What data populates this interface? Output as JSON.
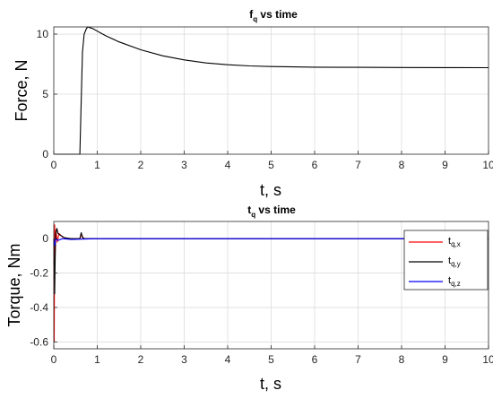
{
  "chart_data": [
    {
      "type": "line",
      "title": "f",
      "title_subscript": "q",
      "title_suffix": " vs time",
      "xlabel": "t, s",
      "ylabel": "Force, N",
      "xlim": [
        0,
        10
      ],
      "ylim": [
        0,
        10.6
      ],
      "xticks": [
        0,
        1,
        2,
        3,
        4,
        5,
        6,
        7,
        8,
        9,
        10
      ],
      "yticks": [
        0,
        5,
        10
      ],
      "grid": true,
      "series": [
        {
          "color": "#000000",
          "x": [
            0,
            0.6,
            0.62,
            0.66,
            0.7,
            0.75,
            0.78,
            0.82,
            0.9,
            1.0,
            1.2,
            1.5,
            2.0,
            2.5,
            3.0,
            3.5,
            4.0,
            4.5,
            5.0,
            5.5,
            6.0,
            7.0,
            8.0,
            9.0,
            10.0
          ],
          "y": [
            0,
            0,
            3.0,
            8.5,
            10.0,
            10.45,
            10.6,
            10.55,
            10.45,
            10.25,
            9.85,
            9.35,
            8.7,
            8.2,
            7.85,
            7.6,
            7.45,
            7.35,
            7.3,
            7.27,
            7.25,
            7.23,
            7.22,
            7.21,
            7.2
          ]
        }
      ]
    },
    {
      "type": "line",
      "title": "t",
      "title_subscript": "q",
      "title_suffix": " vs time",
      "xlabel": "t, s",
      "ylabel": "Torque, Nm",
      "xlim": [
        0,
        10
      ],
      "ylim": [
        -0.64,
        0.1
      ],
      "xticks": [
        0,
        1,
        2,
        3,
        4,
        5,
        6,
        7,
        8,
        9,
        10
      ],
      "yticks": [
        -0.6,
        -0.4,
        -0.2,
        0
      ],
      "grid": true,
      "legend_position": "top-right",
      "series": [
        {
          "name": "t",
          "name_subscript": "q,x",
          "color": "#ff0000",
          "x": [
            0,
            0.01,
            0.02,
            0.03,
            0.05,
            0.08,
            0.12,
            0.2,
            0.3,
            0.6,
            0.63,
            0.66,
            0.7,
            1.0,
            10.0
          ],
          "y": [
            0,
            -0.6,
            0.08,
            -0.1,
            0.05,
            -0.02,
            0.03,
            0.01,
            0,
            0,
            0.03,
            0.005,
            0,
            0,
            0
          ]
        },
        {
          "name": "t",
          "name_subscript": "q,y",
          "color": "#000000",
          "x": [
            0,
            0.02,
            0.04,
            0.07,
            0.1,
            0.15,
            0.25,
            0.4,
            0.6,
            0.63,
            0.66,
            0.7,
            1.0,
            10.0
          ],
          "y": [
            0,
            -0.32,
            0.02,
            0.06,
            0.03,
            0.02,
            0.005,
            0,
            0,
            0.035,
            0.01,
            0,
            0,
            0
          ]
        },
        {
          "name": "t",
          "name_subscript": "q,z",
          "color": "#0000ff",
          "x": [
            0,
            0.02,
            0.05,
            0.1,
            0.2,
            0.4,
            1.0,
            10.0
          ],
          "y": [
            0,
            -0.04,
            0.0,
            -0.01,
            0.0,
            -0.005,
            0,
            0
          ]
        }
      ]
    }
  ]
}
